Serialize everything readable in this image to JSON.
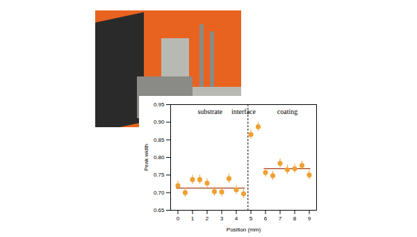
{
  "chart_data": {
    "type": "scatter",
    "x_label": "Position (mm)",
    "y_label": "Peak width",
    "x": [
      0,
      0.5,
      1,
      1.5,
      2,
      2.5,
      3,
      3.5,
      4,
      4.5,
      5,
      5.5,
      6,
      6.5,
      7,
      7.5,
      8,
      8.5,
      9
    ],
    "values": [
      0.72,
      0.7,
      0.737,
      0.737,
      0.727,
      0.703,
      0.702,
      0.74,
      0.708,
      0.697,
      0.865,
      0.887,
      0.757,
      0.748,
      0.783,
      0.765,
      0.768,
      0.777,
      0.75
    ],
    "errors": [
      0.013,
      0.013,
      0.013,
      0.013,
      0.013,
      0.013,
      0.013,
      0.013,
      0.013,
      0.013,
      0.013,
      0.013,
      0.013,
      0.013,
      0.013,
      0.013,
      0.013,
      0.013,
      0.013
    ],
    "color": "#f0a030",
    "marker": "circle",
    "xlim": [
      -0.5,
      9.5
    ],
    "xticks": [
      0,
      1,
      2,
      3,
      4,
      5,
      6,
      7,
      8,
      9
    ],
    "ylim": [
      0.65,
      0.95
    ],
    "yticks": [
      0.65,
      {
        "value": 0.7,
        "label": "0.70"
      },
      0.75,
      {
        "value": 0.8,
        "label": "0.80"
      },
      0.85,
      {
        "value": 0.9,
        "label": "0.90"
      },
      0.95
    ],
    "mean_lines": [
      {
        "y": 0.713,
        "x_start": -0.1,
        "x_end": 4.6,
        "color": "#a0401a"
      },
      {
        "y": 0.768,
        "x_start": 5.9,
        "x_end": 9.1,
        "color": "#a0401a"
      }
    ],
    "interface_line": {
      "x": 4.8,
      "line_style": "dashed",
      "color": "#000000"
    },
    "annotations": [
      {
        "text": "substrate",
        "x": 2.2,
        "y": 0.93
      },
      {
        "text": "interface",
        "x": 4.5,
        "y": 0.93
      },
      {
        "text": "coating",
        "x": 7.5,
        "y": 0.93
      }
    ]
  }
}
